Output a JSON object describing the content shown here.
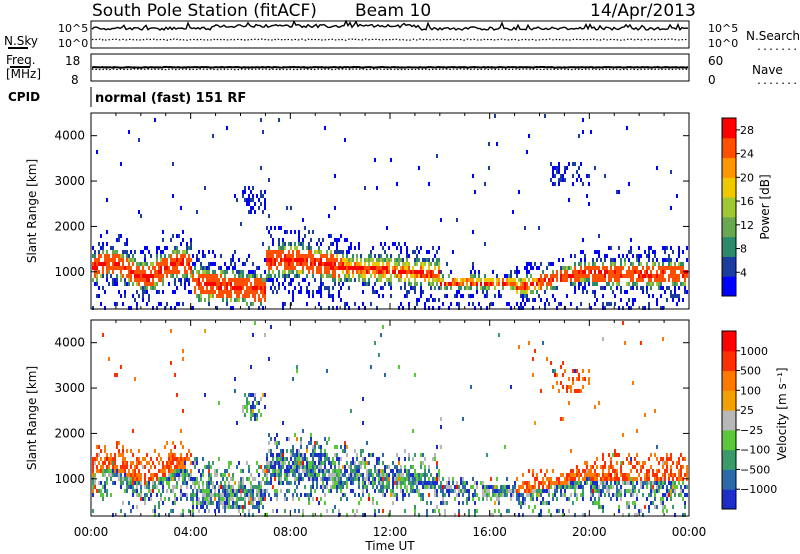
{
  "header": {
    "station": "South Pole Station (fitACF)",
    "beam": "Beam 10",
    "date": "14/Apr/2013"
  },
  "aux_panels": {
    "nsky_label": "N.Sky",
    "nsearch_label": "N.Search",
    "freq_label_line1": "Freq.",
    "freq_label_line2": "[MHz]",
    "nave_label": "Nave",
    "cpid_label": "CPID",
    "cpid_value": "normal (fast) 151 RF",
    "noise_ticks": [
      "10^5",
      "10^0"
    ],
    "noise_ticks_right": [
      "10^5",
      "10^0"
    ],
    "freq_ticks": [
      "18",
      "8"
    ],
    "nave_ticks": [
      "60",
      "0"
    ],
    "dotted_legend": "......."
  },
  "chart_data": [
    {
      "type": "heatmap",
      "title": "",
      "xlabel": "",
      "ylabel": "Slant Range [km]",
      "xlim_hours": [
        0,
        24
      ],
      "ylim_km": [
        180,
        4500
      ],
      "y_ticks": [
        "1000",
        "2000",
        "3000",
        "4000"
      ],
      "y_tick_values": [
        1000,
        2000,
        3000,
        4000
      ],
      "colorbar": {
        "label": "Power [dB]",
        "ticks": [
          "4",
          "8",
          "12",
          "16",
          "20",
          "24",
          "28"
        ],
        "tick_values": [
          4,
          8,
          12,
          16,
          20,
          24,
          28
        ],
        "range": [
          0,
          30
        ],
        "colors": [
          "#0000ff",
          "#1c3da0",
          "#2a8a6a",
          "#6aa84f",
          "#a0c832",
          "#f0c800",
          "#ff9600",
          "#ff5000",
          "#ff0000"
        ]
      }
    },
    {
      "type": "heatmap",
      "title": "",
      "xlabel": "Time UT",
      "ylabel": "Slant Range [km]",
      "xlim_hours": [
        0,
        24
      ],
      "ylim_km": [
        180,
        4500
      ],
      "x_ticks": [
        "00:00",
        "04:00",
        "08:00",
        "12:00",
        "16:00",
        "20:00",
        "00:00"
      ],
      "x_tick_values": [
        0,
        4,
        8,
        12,
        16,
        20,
        24
      ],
      "y_ticks": [
        "1000",
        "2000",
        "3000",
        "4000"
      ],
      "y_tick_values": [
        1000,
        2000,
        3000,
        4000
      ],
      "colorbar": {
        "label": "Velocity [m s⁻¹]",
        "ticks": [
          "1000",
          "500",
          "100",
          "25",
          "−25",
          "−100",
          "−500",
          "−1000"
        ],
        "tick_values": [
          1000,
          500,
          100,
          25,
          -25,
          -100,
          -500,
          -1000
        ],
        "colors": [
          "#1c2ec8",
          "#2a6aa8",
          "#3a9a6a",
          "#5ac83a",
          "#b8b8b8",
          "#f0a000",
          "#ff7800",
          "#ff3000",
          "#ff0000"
        ]
      }
    }
  ]
}
